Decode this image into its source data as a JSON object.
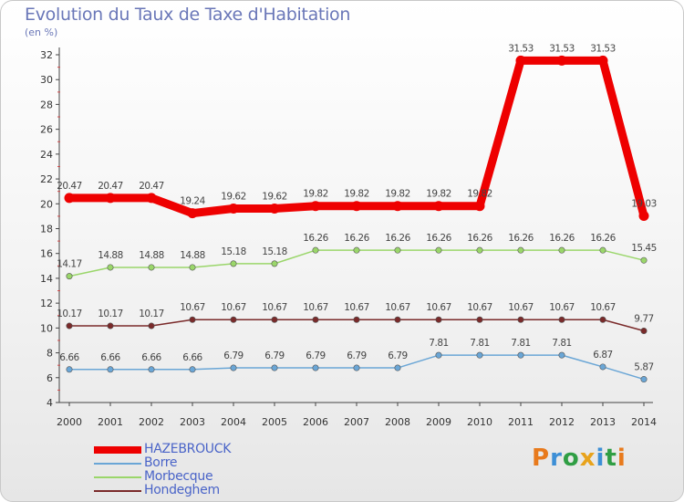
{
  "header": {
    "title": "Evolution du Taux de Taxe d'Habitation",
    "subtitle": "(en %)"
  },
  "brand": {
    "name": "Proxiti"
  },
  "chart_data": {
    "type": "line",
    "title": "Evolution du Taux de Taxe d'Habitation",
    "ylabel": "(en %)",
    "xlabel": "",
    "categories": [
      "2000",
      "2001",
      "2002",
      "2003",
      "2004",
      "2005",
      "2006",
      "2007",
      "2008",
      "2009",
      "2010",
      "2011",
      "2012",
      "2013",
      "2014"
    ],
    "ylim": [
      4,
      32
    ],
    "yticks": [
      4,
      6,
      8,
      10,
      12,
      14,
      16,
      18,
      20,
      22,
      24,
      26,
      28,
      30,
      32
    ],
    "grid": false,
    "legend_position": "bottom-left",
    "series": [
      {
        "name": "HAZEBROUCK",
        "color": "#ee0000",
        "values": [
          20.47,
          20.47,
          20.47,
          19.24,
          19.62,
          19.62,
          19.82,
          19.82,
          19.82,
          19.82,
          19.82,
          31.53,
          31.53,
          31.53,
          19.03
        ],
        "labels": [
          "20.47",
          "20.47",
          "20.47",
          "19.24",
          "19.62",
          "19.62",
          "19.82",
          "19.82",
          "19.82",
          "19.82",
          "19.82",
          "31.53",
          "31.53",
          "31.53",
          "19.03"
        ]
      },
      {
        "name": "Borre",
        "color": "#6aa6d6",
        "values": [
          6.66,
          6.66,
          6.66,
          6.66,
          6.79,
          6.79,
          6.79,
          6.79,
          6.79,
          7.81,
          7.81,
          7.81,
          7.81,
          6.87,
          5.87
        ],
        "labels": [
          "6.66",
          "6.66",
          "6.66",
          "6.66",
          "6.79",
          "6.79",
          "6.79",
          "6.79",
          "6.79",
          "7.81",
          "7.81",
          "7.81",
          "7.81",
          "6.87",
          "5.87"
        ]
      },
      {
        "name": "Morbecque",
        "color": "#9ad66a",
        "values": [
          14.17,
          14.88,
          14.88,
          14.88,
          15.18,
          15.18,
          16.26,
          16.26,
          16.26,
          16.26,
          16.26,
          16.26,
          16.26,
          16.26,
          15.45
        ],
        "labels": [
          "14.17",
          "14.88",
          "14.88",
          "14.88",
          "15.18",
          "15.18",
          "16.26",
          "16.26",
          "16.26",
          "16.26",
          "16.26",
          "16.26",
          "16.26",
          "16.26",
          "15.45"
        ]
      },
      {
        "name": "Hondeghem",
        "color": "#7a2a2a",
        "values": [
          10.17,
          10.17,
          10.17,
          10.67,
          10.67,
          10.67,
          10.67,
          10.67,
          10.67,
          10.67,
          10.67,
          10.67,
          10.67,
          10.67,
          9.77
        ],
        "labels": [
          "10.17",
          "10.17",
          "10.17",
          "10.67",
          "10.67",
          "10.67",
          "10.67",
          "10.67",
          "10.67",
          "10.67",
          "10.67",
          "10.67",
          "10.67",
          "10.67",
          "9.77"
        ]
      }
    ]
  }
}
